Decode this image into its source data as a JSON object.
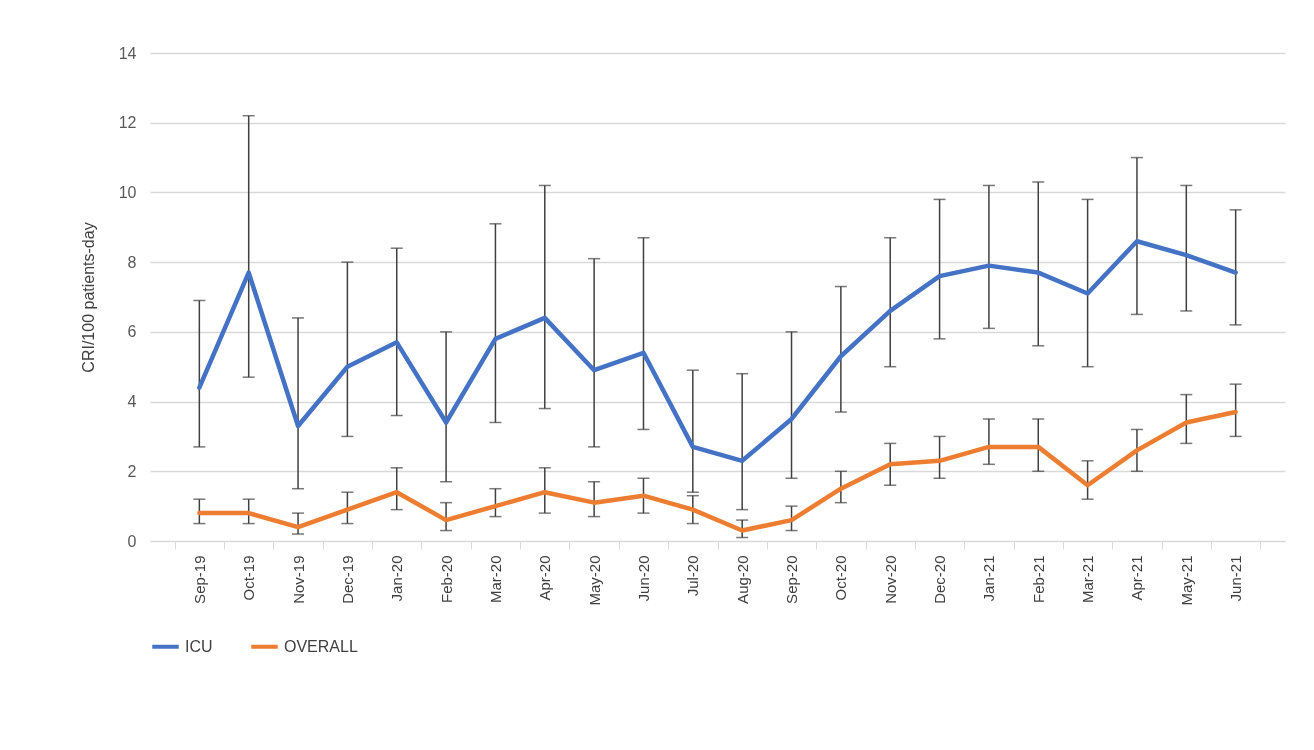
{
  "chart_data": {
    "type": "line",
    "ylabel": "CRI/100 patients-day",
    "categories": [
      "Sep-19",
      "Oct-19",
      "Nov-19",
      "Dec-19",
      "Jan-20",
      "Feb-20",
      "Mar-20",
      "Apr-20",
      "May-20",
      "Jun-20",
      "Jul-20",
      "Aug-20",
      "Sep-20",
      "Oct-20",
      "Nov-20",
      "Dec-20",
      "Jan-21",
      "Feb-21",
      "Mar-21",
      "Apr-21",
      "May-21",
      "Jun-21"
    ],
    "series": [
      {
        "name": "ICU",
        "color": "#4472c4",
        "values": [
          4.4,
          7.7,
          3.3,
          5.0,
          5.7,
          3.4,
          5.8,
          6.4,
          4.9,
          5.4,
          2.7,
          2.3,
          3.5,
          5.3,
          6.6,
          7.6,
          7.9,
          7.7,
          7.1,
          8.6,
          8.2,
          7.7
        ],
        "errors": [
          [
            2.7,
            6.9
          ],
          [
            4.7,
            12.2
          ],
          [
            1.5,
            6.4
          ],
          [
            3.0,
            8.0
          ],
          [
            3.6,
            8.4
          ],
          [
            1.7,
            6.0
          ],
          [
            3.4,
            9.1
          ],
          [
            3.8,
            10.2
          ],
          [
            2.7,
            8.1
          ],
          [
            3.2,
            8.7
          ],
          [
            1.4,
            4.9
          ],
          [
            0.9,
            4.8
          ],
          [
            1.8,
            6.0
          ],
          [
            3.7,
            7.3
          ],
          [
            5.0,
            8.7
          ],
          [
            5.8,
            9.8
          ],
          [
            6.1,
            10.2
          ],
          [
            5.6,
            10.3
          ],
          [
            5.0,
            9.8
          ],
          [
            6.5,
            11.0
          ],
          [
            6.6,
            10.2
          ],
          [
            6.2,
            9.5
          ]
        ]
      },
      {
        "name": "OVERALL",
        "color": "#ed7d31",
        "values": [
          0.8,
          0.8,
          0.4,
          0.9,
          1.4,
          0.6,
          1.0,
          1.4,
          1.1,
          1.3,
          0.9,
          0.3,
          0.6,
          1.5,
          2.2,
          2.3,
          2.7,
          2.7,
          1.6,
          2.6,
          3.4,
          3.7
        ],
        "errors": [
          [
            0.5,
            1.2
          ],
          [
            0.5,
            1.2
          ],
          [
            0.2,
            0.8
          ],
          [
            0.5,
            1.4
          ],
          [
            0.9,
            2.1
          ],
          [
            0.3,
            1.1
          ],
          [
            0.7,
            1.5
          ],
          [
            0.8,
            2.1
          ],
          [
            0.7,
            1.7
          ],
          [
            0.8,
            1.8
          ],
          [
            0.5,
            1.3
          ],
          [
            0.1,
            0.6
          ],
          [
            0.3,
            1.0
          ],
          [
            1.1,
            2.0
          ],
          [
            1.6,
            2.8
          ],
          [
            1.8,
            3.0
          ],
          [
            2.2,
            3.5
          ],
          [
            2.0,
            3.5
          ],
          [
            1.2,
            2.3
          ],
          [
            2.0,
            3.2
          ],
          [
            2.8,
            4.2
          ],
          [
            3.0,
            4.5
          ]
        ]
      }
    ],
    "ylim": [
      0,
      14
    ],
    "yticks": [
      0,
      2,
      4,
      6,
      8,
      10,
      12,
      14
    ],
    "grid": "y",
    "legend": "bottom",
    "marker": "none",
    "line_style": "solid"
  }
}
